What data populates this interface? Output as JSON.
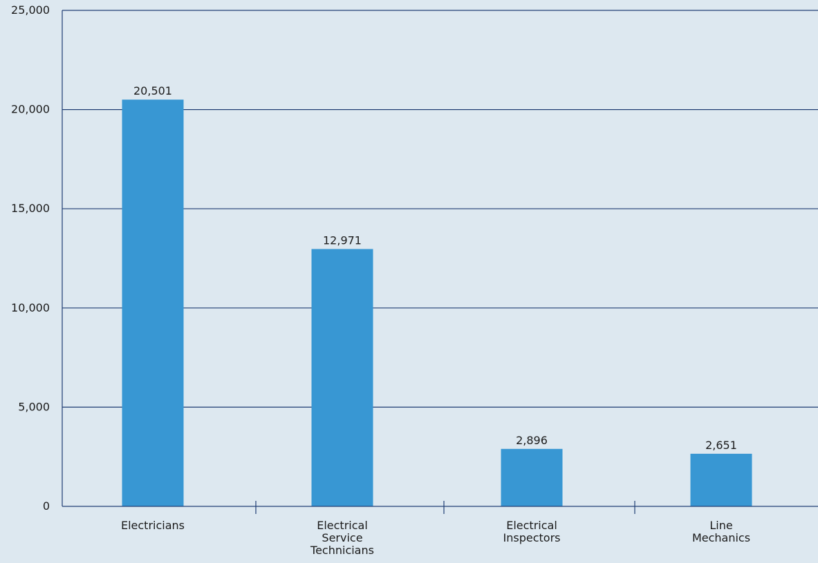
{
  "colors": {
    "background": "#dde8f0",
    "bar": "#3897d3",
    "axis": "#1f3d73",
    "text": "#1a1a1a"
  },
  "chart_data": {
    "type": "bar",
    "title": "",
    "xlabel": "",
    "ylabel": "",
    "ylim": [
      0,
      25000
    ],
    "yticks": [
      0,
      5000,
      10000,
      15000,
      20000,
      25000
    ],
    "ytick_labels": [
      "0",
      "5,000",
      "10,000",
      "15,000",
      "20,000",
      "25,000"
    ],
    "grid": "horizontal",
    "categories": [
      [
        "Electricians"
      ],
      [
        "Electrical",
        "Service",
        "Technicians"
      ],
      [
        "Electrical",
        "Inspectors"
      ],
      [
        "Line",
        "Mechanics"
      ]
    ],
    "values": [
      20501,
      12971,
      2896,
      2651
    ],
    "value_labels": [
      "20,501",
      "12,971",
      "2,896",
      "2,651"
    ]
  }
}
